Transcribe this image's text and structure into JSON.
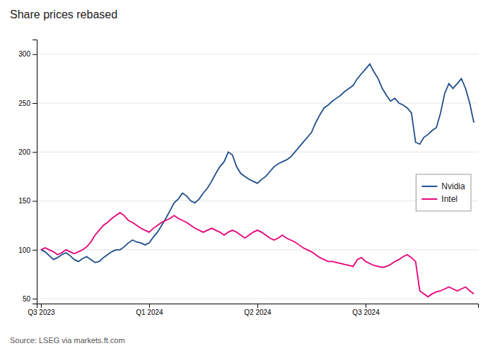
{
  "chart_data": {
    "type": "line",
    "title": "Share prices rebased",
    "annotations": [
      "Source: LSEG via markets.ft.com"
    ],
    "categories": [
      "Q3 2023",
      null,
      null,
      null,
      null,
      null,
      null,
      null,
      null,
      null,
      null,
      null,
      null,
      null,
      null,
      null,
      null,
      null,
      null,
      null,
      null,
      null,
      null,
      null,
      null,
      null,
      "Q1 2024",
      null,
      null,
      null,
      null,
      null,
      null,
      null,
      null,
      null,
      null,
      null,
      null,
      null,
      null,
      null,
      null,
      null,
      null,
      null,
      null,
      null,
      null,
      null,
      null,
      null,
      "Q2 2024",
      null,
      null,
      null,
      null,
      null,
      null,
      null,
      null,
      null,
      null,
      null,
      null,
      null,
      null,
      null,
      null,
      null,
      null,
      null,
      null,
      null,
      null,
      null,
      null,
      null,
      "Q3 2024",
      null,
      null,
      null,
      null,
      null,
      null,
      null,
      null,
      null,
      null,
      null,
      null,
      null,
      null,
      null,
      null,
      null,
      null,
      null,
      null,
      null,
      null,
      null,
      null,
      null,
      null
    ],
    "series": [
      {
        "name": "Nvidia",
        "color": "#1f4e8c",
        "values": [
          100,
          98,
          94,
          90,
          92,
          95,
          97,
          94,
          90,
          88,
          91,
          93,
          90,
          87,
          88,
          92,
          95,
          98,
          100,
          100,
          103,
          107,
          110,
          108,
          107,
          105,
          107,
          113,
          118,
          125,
          132,
          140,
          148,
          152,
          158,
          155,
          150,
          148,
          152,
          158,
          163,
          170,
          178,
          185,
          190,
          200,
          197,
          185,
          178,
          175,
          172,
          170,
          168,
          172,
          175,
          180,
          185,
          188,
          190,
          192,
          195,
          200,
          205,
          210,
          215,
          220,
          230,
          238,
          245,
          248,
          252,
          255,
          258,
          262,
          265,
          268,
          275,
          280,
          285,
          290,
          282,
          275,
          265,
          258,
          252,
          255,
          250,
          248,
          245,
          240,
          210,
          208,
          215,
          218,
          222,
          225,
          240,
          260,
          270,
          265,
          270,
          275,
          265,
          250,
          230
        ]
      },
      {
        "name": "Intel",
        "color": "#e6007a",
        "values": [
          100,
          102,
          100,
          98,
          95,
          97,
          100,
          98,
          96,
          98,
          100,
          103,
          108,
          115,
          120,
          125,
          128,
          132,
          135,
          138,
          135,
          130,
          128,
          125,
          122,
          120,
          118,
          122,
          125,
          128,
          130,
          132,
          135,
          132,
          130,
          128,
          125,
          122,
          120,
          118,
          120,
          122,
          120,
          118,
          115,
          118,
          120,
          118,
          115,
          112,
          115,
          118,
          120,
          118,
          115,
          112,
          110,
          112,
          115,
          112,
          110,
          108,
          105,
          102,
          100,
          98,
          95,
          92,
          90,
          88,
          88,
          87,
          86,
          85,
          84,
          83,
          90,
          92,
          88,
          86,
          84,
          83,
          82,
          83,
          85,
          88,
          90,
          93,
          95,
          92,
          88,
          58,
          55,
          52,
          55,
          57,
          58,
          60,
          62,
          60,
          58,
          60,
          62,
          58,
          55
        ]
      }
    ],
    "ylim": [
      45,
      315
    ],
    "yticks": [
      50,
      100,
      150,
      200,
      250,
      300
    ],
    "grid": true,
    "legend": "right"
  }
}
